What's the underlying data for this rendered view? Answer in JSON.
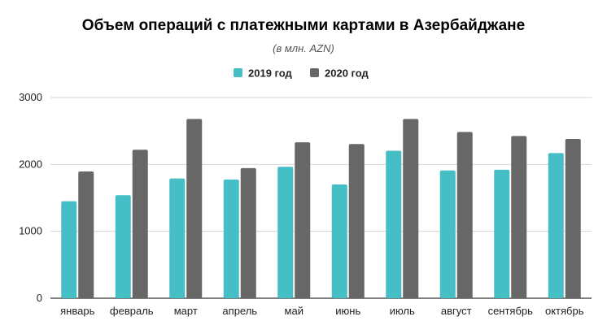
{
  "colors": {
    "series_2019": "#45BEC5",
    "series_2020": "#676767",
    "grid": "#D6D6D6",
    "axis": "#333333"
  },
  "chart_data": {
    "type": "bar",
    "title": "Объем операций с платежными картами в Азербайджане",
    "subtitle": "(в млн. AZN)",
    "xlabel": "",
    "ylabel": "",
    "ylim": [
      0,
      3000
    ],
    "yticks": [
      "0",
      "1000",
      "2000",
      "3000"
    ],
    "grid": true,
    "legend_position": "top",
    "categories": [
      "январь",
      "февраль",
      "март",
      "апрель",
      "май",
      "июнь",
      "июль",
      "август",
      "сентябрь",
      "октябрь"
    ],
    "series": [
      {
        "name": "2019 год",
        "values": [
          1450,
          1540,
          1790,
          1775,
          1965,
          1700,
          2205,
          1910,
          1920,
          2170
        ]
      },
      {
        "name": "2020 год",
        "values": [
          1895,
          2220,
          2680,
          1945,
          2330,
          2305,
          2680,
          2485,
          2425,
          2380
        ]
      }
    ]
  }
}
